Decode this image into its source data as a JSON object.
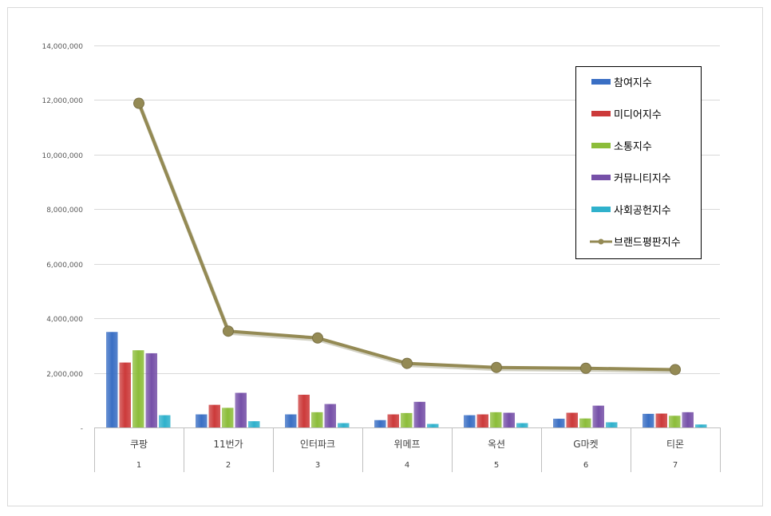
{
  "chart_data": {
    "type": "bar",
    "categories": [
      "쿠팡",
      "11번가",
      "인터파크",
      "위메프",
      "옥션",
      "G마켓",
      "티몬"
    ],
    "ranks": [
      "1",
      "2",
      "3",
      "4",
      "5",
      "6",
      "7"
    ],
    "ylim": [
      0,
      14000000
    ],
    "yticks": [
      0,
      2000000,
      4000000,
      6000000,
      8000000,
      10000000,
      12000000,
      14000000
    ],
    "ytick_labels": [
      "-",
      "2,000,000",
      "4,000,000",
      "6,000,000",
      "8,000,000",
      "10,000,000",
      "12,000,000",
      "14,000,000"
    ],
    "grid": true,
    "legend_position": "top-right",
    "series": [
      {
        "name": "참여지수",
        "type": "bar",
        "color": "#3a6fc4",
        "values": [
          3500000,
          480000,
          480000,
          270000,
          450000,
          320000,
          500000
        ]
      },
      {
        "name": "미디어지수",
        "type": "bar",
        "color": "#cc3a3a",
        "values": [
          2380000,
          830000,
          1200000,
          480000,
          480000,
          540000,
          510000
        ]
      },
      {
        "name": "소통지수",
        "type": "bar",
        "color": "#8cbd3a",
        "values": [
          2830000,
          720000,
          560000,
          530000,
          560000,
          330000,
          430000
        ]
      },
      {
        "name": "커뮤니티지수",
        "type": "bar",
        "color": "#7650a8",
        "values": [
          2720000,
          1270000,
          860000,
          940000,
          540000,
          800000,
          560000
        ]
      },
      {
        "name": "사회공헌지수",
        "type": "bar",
        "color": "#2fb1cc",
        "values": [
          450000,
          230000,
          160000,
          130000,
          160000,
          190000,
          110000
        ]
      },
      {
        "name": "브랜드평판지수",
        "type": "line",
        "color": "#948a54",
        "values": [
          11880000,
          3530000,
          3280000,
          2350000,
          2200000,
          2170000,
          2120000
        ]
      }
    ]
  }
}
